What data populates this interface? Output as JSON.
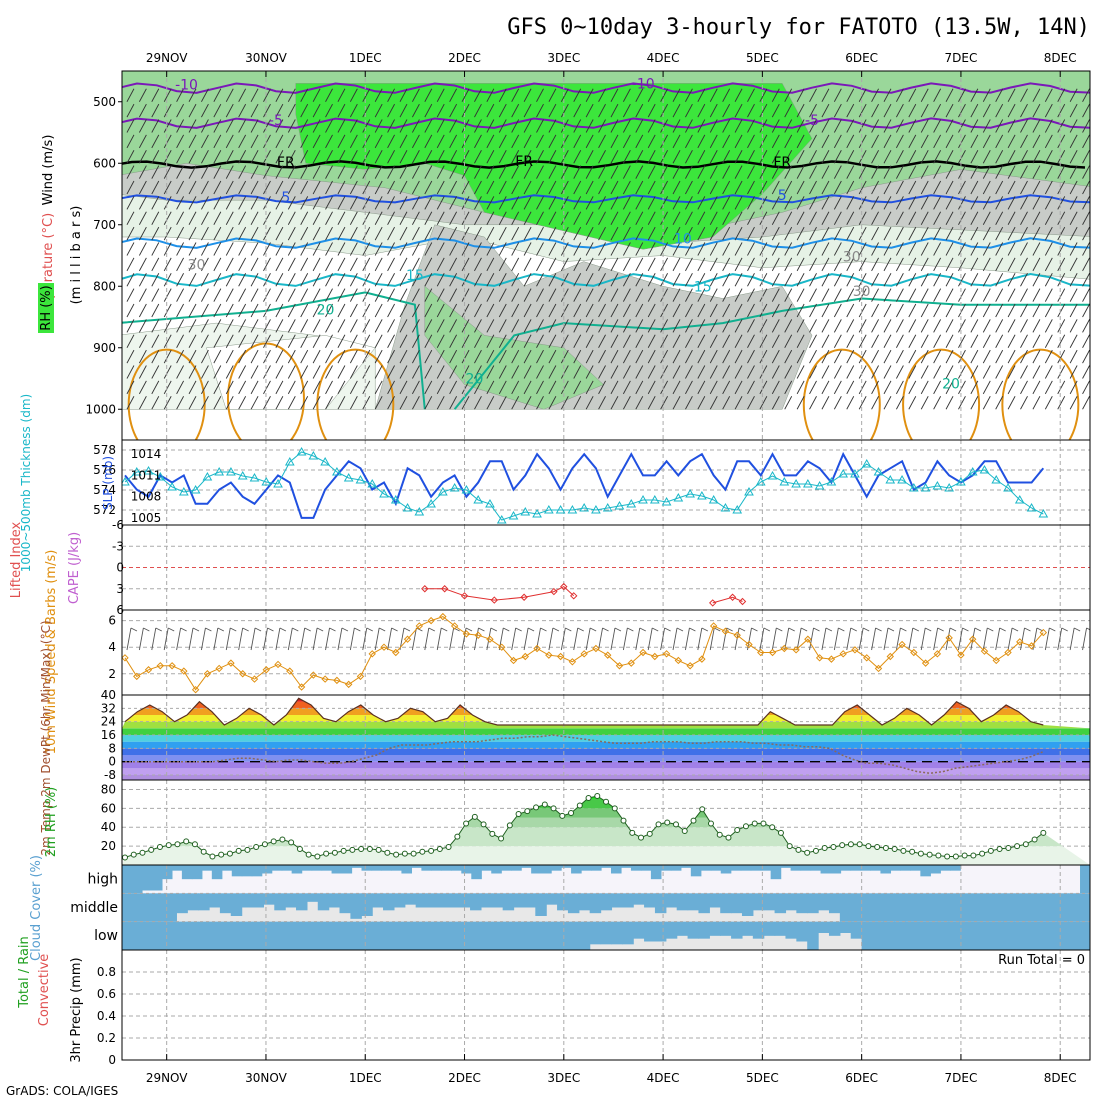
{
  "title": "GFS 0~10day 3-hourly for FATOTO (13.5W, 14N)",
  "footer": "GrADS: COLA/IGES",
  "run_total_label": "Run Total = 0",
  "dates": [
    "29NOV",
    "30NOV",
    "1DEC",
    "2DEC",
    "3DEC",
    "4DEC",
    "5DEC",
    "6DEC",
    "7DEC",
    "8DEC"
  ],
  "colors": {
    "green_light": "#e6f2e6",
    "green_mid": "#9ad79a",
    "green_bright": "#3ce63c",
    "gray": "#c8ccc8",
    "purple": "#7a18b8",
    "blue": "#2050e0",
    "cyan": "#19b7c8",
    "teal": "#10b090",
    "orange": "#e09010",
    "cloud_blue": "#6aaed6",
    "cloud_gray": "#e8e8e8"
  },
  "panels": {
    "upper_air": {
      "ylabels": [
        "Wind (m/s)",
        "Temperature (°C)",
        "RH (%)",
        "(m i l l i b a r s)"
      ],
      "yticks": [
        "500",
        "600",
        "700",
        "800",
        "900",
        "1000"
      ],
      "contour_labels": [
        "-10",
        "-10",
        "-5",
        "-5",
        "FR",
        "FR",
        "FR",
        "5",
        "5",
        "10",
        "15",
        "15",
        "20",
        "20",
        "20",
        "30",
        "30",
        "30"
      ]
    },
    "thickness_slp": {
      "ylabel_left": "1000~500mb Thickness (dm)",
      "ylabel_right": "SLP (mb)",
      "yticks_left": [
        "578",
        "576",
        "574",
        "572"
      ],
      "yticks_right": [
        "1014",
        "1011",
        "1008",
        "1005"
      ]
    },
    "lifted_cape": {
      "ylabel_red": "Lifted Index",
      "ylabel_purple": "CAPE (J/kg)",
      "yticks": [
        "-6",
        "-3",
        "0",
        "3",
        "6"
      ]
    },
    "wind10m": {
      "ylabel": "10m Wind Speed & Barbs (m/s)",
      "yticks": [
        "6",
        "4",
        "2"
      ]
    },
    "temp2m": {
      "ylabel": "2m Temp 2m DewPt (6hr Min/Max) (°C)",
      "yticks": [
        "40",
        "32",
        "24",
        "16",
        "8",
        "0",
        "-8"
      ]
    },
    "rh2m": {
      "ylabel": "2m RH (%)",
      "yticks": [
        "80",
        "60",
        "40",
        "20"
      ]
    },
    "cloud": {
      "ylabel": "Cloud Cover (%)",
      "levels": [
        "high",
        "middle",
        "low"
      ]
    },
    "precip": {
      "ylabel_green": "Total / Rain",
      "ylabel_red": "Convective",
      "ylabel_axis": "3hr Precip (mm)",
      "yticks": [
        "0.8",
        "0.6",
        "0.4",
        "0.2",
        "0"
      ]
    }
  },
  "chart_data": {
    "type": "line",
    "x_dates": [
      "29NOV",
      "30NOV",
      "1DEC",
      "2DEC",
      "3DEC",
      "4DEC",
      "5DEC",
      "6DEC",
      "7DEC",
      "8DEC"
    ],
    "x_range_days": [
      -0.45,
      9.3
    ],
    "slp_mb": [
      1011,
      1009,
      1008,
      1011,
      1010,
      1011,
      1007,
      1007,
      1009,
      1010,
      1008,
      1007,
      1009,
      1011,
      1010,
      1005,
      1005,
      1009,
      1011,
      1013,
      1012,
      1009,
      1010,
      1007,
      1012,
      1011,
      1008,
      1010,
      1011,
      1008,
      1010,
      1013,
      1013,
      1009,
      1011,
      1014,
      1012,
      1009,
      1012,
      1014,
      1012,
      1008,
      1011,
      1014,
      1011,
      1011,
      1013,
      1011,
      1013,
      1014,
      1011,
      1009,
      1013,
      1013,
      1011,
      1014,
      1011,
      1011,
      1013,
      1012,
      1010,
      1014,
      1011,
      1008,
      1011,
      1012,
      1013,
      1009,
      1010,
      1013,
      1011,
      1010,
      1011,
      1013,
      1013,
      1010,
      1010,
      1010,
      1012
    ],
    "thickness_dm": [
      574.8,
      575.8,
      575.9,
      575.3,
      574.3,
      573.8,
      574.0,
      575.3,
      575.8,
      575.8,
      575.4,
      575.2,
      574.8,
      574.6,
      576.8,
      577.8,
      577.4,
      576.8,
      575.8,
      575.2,
      575.0,
      574.6,
      573.6,
      573.0,
      572.2,
      571.8,
      572.6,
      573.8,
      574.2,
      574.0,
      573.0,
      572.6,
      571.0,
      571.4,
      571.8,
      571.6,
      572.0,
      572.0,
      572.0,
      572.2,
      572.0,
      572.2,
      572.4,
      572.6,
      573.0,
      573.0,
      572.8,
      573.2,
      573.6,
      573.4,
      573.0,
      572.2,
      572.0,
      573.8,
      574.8,
      575.4,
      574.8,
      574.6,
      574.6,
      574.4,
      574.8,
      575.6,
      575.6,
      576.6,
      575.8,
      575.0,
      575.0,
      574.2,
      574.2,
      574.4,
      574.2,
      574.8,
      575.8,
      576.0,
      575.0,
      574.2,
      573.0,
      572.2,
      571.6
    ],
    "wind10m_ms": [
      3.2,
      1.8,
      2.3,
      2.6,
      2.6,
      2.2,
      0.8,
      2.0,
      2.4,
      2.8,
      2.0,
      1.6,
      2.3,
      2.7,
      2.2,
      1.0,
      1.9,
      1.6,
      1.5,
      1.2,
      1.8,
      3.5,
      4.0,
      3.6,
      4.6,
      5.6,
      6.0,
      6.3,
      5.6,
      5.0,
      4.9,
      4.6,
      4.0,
      3.0,
      3.3,
      3.9,
      3.4,
      3.3,
      2.9,
      3.5,
      3.9,
      3.4,
      2.6,
      2.8,
      3.6,
      3.3,
      3.5,
      3.0,
      2.6,
      3.1,
      5.6,
      5.2,
      4.9,
      4.2,
      3.6,
      3.6,
      3.9,
      3.8,
      4.6,
      3.2,
      3.1,
      3.5,
      3.8,
      3.2,
      2.4,
      3.3,
      4.2,
      3.6,
      2.8,
      3.5,
      4.7,
      3.4,
      4.6,
      3.7,
      3.0,
      3.6,
      4.4,
      4.1,
      5.1
    ],
    "lifted_index_partial": [
      {
        "day": 2.6,
        "li": 3.0
      },
      {
        "day": 2.8,
        "li": 3.0
      },
      {
        "day": 3.0,
        "li": 4.0
      },
      {
        "day": 3.3,
        "li": 4.6
      },
      {
        "day": 3.6,
        "li": 4.2
      },
      {
        "day": 3.9,
        "li": 3.4
      },
      {
        "day": 4.0,
        "li": 2.7
      },
      {
        "day": 4.1,
        "li": 4.0
      },
      {
        "day": 5.5,
        "li": 5.0
      },
      {
        "day": 5.7,
        "li": 4.2
      },
      {
        "day": 5.8,
        "li": 4.8
      }
    ],
    "temp2m_c": [
      24,
      30,
      34,
      30,
      24,
      28,
      36,
      30,
      22,
      26,
      32,
      28,
      22,
      28,
      38,
      34,
      26,
      24,
      30,
      34,
      28,
      24,
      26,
      32,
      30,
      24,
      26,
      34,
      28,
      24,
      22,
      22,
      22,
      22,
      22,
      22,
      22,
      22,
      22,
      22,
      22,
      22,
      22,
      22,
      22,
      22,
      22,
      22,
      22,
      22,
      22,
      22,
      30,
      26,
      22,
      22,
      22,
      22,
      30,
      34,
      28,
      22,
      26,
      32,
      28,
      22,
      28,
      36,
      32,
      24,
      28,
      34,
      30,
      24,
      22
    ],
    "dewpt2m_c": [
      0,
      0,
      0,
      0,
      0,
      0,
      0,
      0,
      1,
      2,
      2,
      1,
      0,
      1,
      1,
      0,
      -1,
      -1,
      0,
      2,
      4,
      8,
      10,
      10,
      10,
      11,
      12,
      12,
      12,
      13,
      14,
      14,
      15,
      15,
      16,
      15,
      14,
      13,
      12,
      11,
      11,
      11,
      12,
      12,
      12,
      11,
      11,
      12,
      12,
      12,
      11,
      11,
      10,
      10,
      9,
      9,
      8,
      4,
      1,
      -1,
      -1,
      -2,
      -4,
      -6,
      -7,
      -6,
      -4,
      -3,
      -2,
      -1,
      0,
      1,
      3,
      6
    ],
    "rh2m_pct": [
      8,
      11,
      13,
      16,
      19,
      21,
      22,
      25,
      22,
      14,
      9,
      11,
      12,
      15,
      16,
      19,
      22,
      25,
      27,
      24,
      17,
      11,
      9,
      12,
      13,
      15,
      16,
      17,
      17,
      16,
      13,
      11,
      12,
      12,
      14,
      15,
      17,
      19,
      30,
      44,
      51,
      43,
      33,
      28,
      42,
      54,
      57,
      61,
      64,
      60,
      52,
      55,
      63,
      71,
      73,
      67,
      60,
      47,
      34,
      29,
      33,
      43,
      45,
      43,
      36,
      47,
      59,
      44,
      32,
      29,
      37,
      41,
      44,
      44,
      40,
      34,
      20,
      16,
      13,
      15,
      18,
      19,
      21,
      22,
      22,
      20,
      19,
      18,
      17,
      15,
      14,
      12,
      11,
      10,
      9,
      9,
      10,
      10,
      12,
      15,
      17,
      18,
      20,
      22,
      27,
      34
    ],
    "cloud_high_pct": [
      100,
      100,
      90,
      90,
      50,
      20,
      50,
      50,
      20,
      50,
      20,
      40,
      40,
      40,
      30,
      20,
      20,
      30,
      20,
      20,
      20,
      30,
      30,
      10,
      20,
      20,
      20,
      20,
      30,
      10,
      20,
      20,
      20,
      20,
      30,
      50,
      20,
      30,
      20,
      20,
      10,
      30,
      30,
      20,
      10,
      30,
      20,
      20,
      10,
      30,
      10,
      20,
      20,
      50,
      20,
      20,
      10,
      40,
      20,
      20,
      30,
      20,
      20,
      20,
      20,
      50,
      10,
      20,
      20,
      20,
      30,
      30,
      20,
      20,
      20,
      20,
      30,
      20,
      20,
      20,
      40,
      30,
      20,
      20,
      0,
      0,
      0,
      0,
      0,
      0,
      0,
      0,
      0,
      0,
      0,
      0,
      100
    ],
    "cloud_mid_pct": [
      100,
      100,
      100,
      100,
      100,
      70,
      60,
      60,
      50,
      70,
      80,
      50,
      50,
      40,
      60,
      50,
      60,
      30,
      60,
      50,
      70,
      90,
      80,
      50,
      60,
      50,
      40,
      50,
      50,
      50,
      50,
      50,
      60,
      50,
      50,
      60,
      50,
      50,
      80,
      40,
      60,
      70,
      60,
      70,
      60,
      50,
      50,
      40,
      50,
      70,
      50,
      60,
      60,
      70,
      50,
      70,
      70,
      80,
      60,
      60,
      70,
      60,
      70,
      70,
      60,
      70,
      100,
      100,
      100,
      100,
      100,
      100,
      100,
      100,
      100,
      100,
      100,
      100,
      100,
      100,
      100,
      100,
      100,
      100,
      100,
      100,
      100,
      100,
      100
    ],
    "cloud_low_pct": [
      100,
      100,
      100,
      100,
      100,
      100,
      100,
      100,
      100,
      100,
      100,
      100,
      100,
      100,
      100,
      100,
      100,
      100,
      100,
      100,
      100,
      100,
      100,
      100,
      100,
      100,
      100,
      100,
      100,
      100,
      100,
      100,
      100,
      100,
      100,
      100,
      100,
      100,
      100,
      100,
      100,
      100,
      100,
      80,
      80,
      80,
      80,
      60,
      70,
      70,
      60,
      50,
      60,
      60,
      50,
      50,
      60,
      50,
      60,
      50,
      50,
      60,
      70,
      100,
      40,
      50,
      40,
      60,
      100,
      100,
      100,
      100,
      100,
      100,
      100,
      100,
      100,
      100,
      100,
      100,
      100,
      100,
      100,
      100,
      100,
      100,
      100,
      100,
      100
    ],
    "precip_mm": [
      0
    ],
    "yranges": {
      "upper_air_mb": [
        1050,
        450
      ],
      "thickness_dm": [
        570.5,
        579
      ],
      "slp_mb": [
        1004,
        1016
      ],
      "lifted_index": [
        -6,
        6
      ],
      "wind10m_ms": [
        0.4,
        6.8
      ],
      "temp2m_c": [
        -11,
        40
      ],
      "rh2m_pct": [
        0,
        90
      ],
      "precip_mm": [
        0,
        1
      ]
    }
  }
}
